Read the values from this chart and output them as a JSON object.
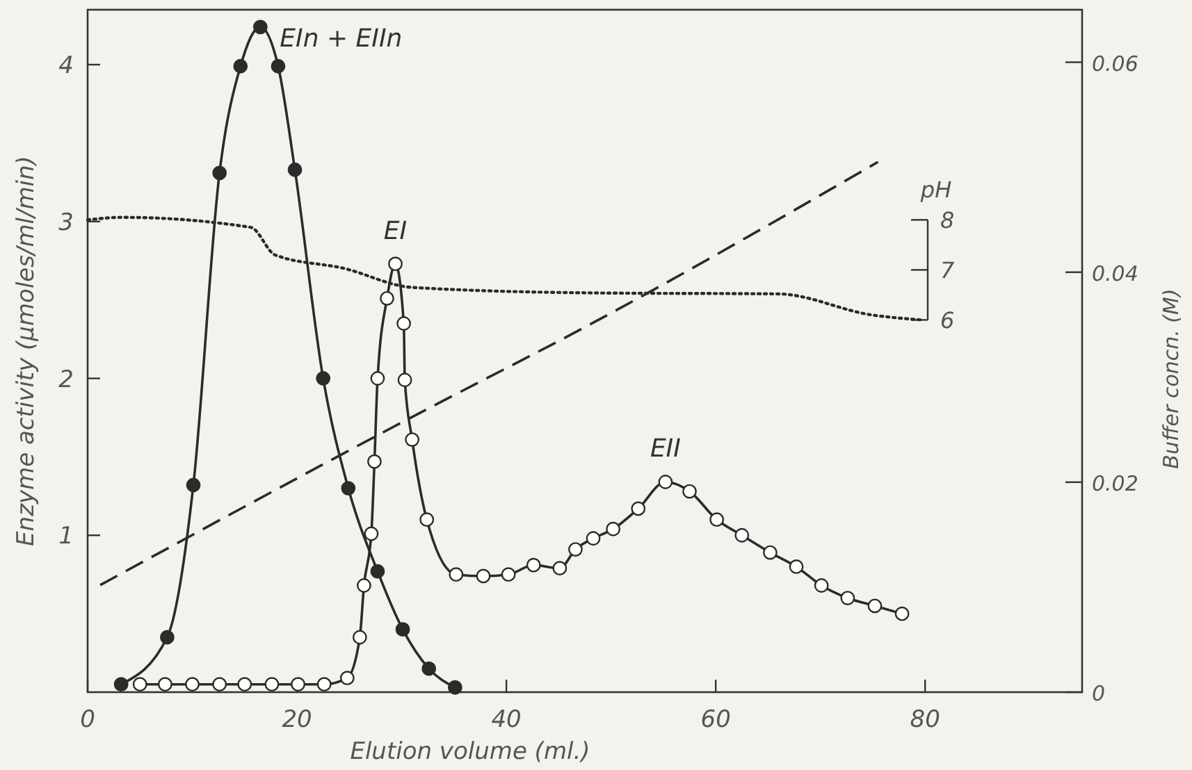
{
  "chart_data": {
    "type": "line",
    "xlabel": "Elution volume (ml.)",
    "ylabel": "Enzyme activity (μmoles/ml/min)",
    "y2label": "Buffer concn. (M)",
    "y3label": "pH",
    "xlim": [
      0,
      95
    ],
    "xticks": [
      0,
      20,
      40,
      60,
      80
    ],
    "ylim": [
      0,
      4.35
    ],
    "yticks": [
      1,
      2,
      3,
      4
    ],
    "y2lim": [
      0,
      0.065
    ],
    "y2ticks": [
      0,
      0.02,
      0.04,
      0.06
    ],
    "y3lim": [
      -1.44,
      12.2
    ],
    "y3ticks": [
      6,
      7,
      8
    ],
    "grid": false,
    "series": [
      {
        "color": "#2b2b2b",
        "marker": "circle",
        "line_style": "solid",
        "x": [
          3.2,
          7.6,
          10.1,
          12.6,
          14.6,
          16.5,
          18.2,
          19.8,
          22.5,
          24.9,
          27.7,
          30.1,
          32.6,
          35.1
        ],
        "values": [
          0.05,
          0.35,
          1.32,
          3.31,
          3.99,
          4.24,
          3.99,
          3.33,
          2.0,
          1.3,
          0.77,
          0.4,
          0.15,
          0.03
        ]
      },
      {
        "color": "#ffffff",
        "marker": "circle",
        "line_style": "solid",
        "x": [
          5.0,
          7.4,
          10.0,
          12.6,
          15.0,
          17.6,
          20.1,
          22.6,
          24.8,
          26.0,
          26.4,
          27.1,
          27.4,
          27.7,
          28.6,
          29.4,
          30.2,
          30.3,
          31.0,
          32.4,
          35.2,
          37.8,
          40.2,
          42.6,
          45.1,
          46.6,
          48.3,
          50.2,
          52.6,
          55.2,
          57.5,
          60.1,
          62.5,
          65.2,
          67.7,
          70.1,
          72.6,
          75.2,
          77.8
        ],
        "values": [
          0.05,
          0.05,
          0.05,
          0.05,
          0.05,
          0.05,
          0.05,
          0.05,
          0.09,
          0.35,
          0.68,
          1.01,
          1.47,
          2.0,
          2.51,
          2.73,
          2.35,
          1.99,
          1.61,
          1.1,
          0.75,
          0.74,
          0.75,
          0.81,
          0.79,
          0.91,
          0.98,
          1.04,
          1.17,
          1.34,
          1.28,
          1.1,
          1.0,
          0.89,
          0.8,
          0.68,
          0.6,
          0.55,
          0.5
        ]
      },
      {
        "color": "#2b2b2b",
        "axis": "y2",
        "marker": "none",
        "line_style": "dashed",
        "x": [
          1.2,
          30.6,
          48.5,
          75.5
        ],
        "values": [
          0.0102,
          0.026,
          0.0353,
          0.0505
        ]
      },
      {
        "color": "#2b2b2b",
        "axis": "y3",
        "marker": "none",
        "line_style": "dotted",
        "x": [
          0,
          3.3,
          15.6,
          17.9,
          24.5,
          31.0,
          48.3,
          66.0,
          74.9,
          79.7
        ],
        "values": [
          8.0,
          8.05,
          7.85,
          7.3,
          7.03,
          6.65,
          6.54,
          6.52,
          6.1,
          6.0
        ]
      }
    ],
    "annotations": [
      {
        "text": "EIn + EIIn",
        "x": 16.5,
        "y": 4.24
      },
      {
        "text": "EI",
        "x": 29.4,
        "y": 2.73
      },
      {
        "text": "EII",
        "x": 55.2,
        "y": 1.34
      }
    ]
  }
}
